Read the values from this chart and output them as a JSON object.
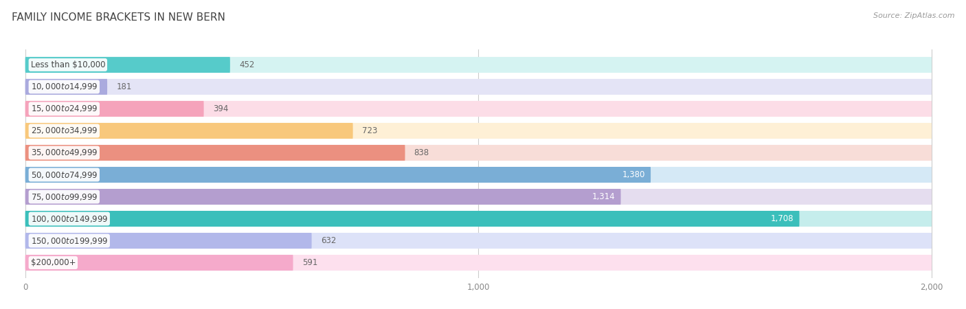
{
  "title": "FAMILY INCOME BRACKETS IN NEW BERN",
  "source": "Source: ZipAtlas.com",
  "categories": [
    "Less than $10,000",
    "$10,000 to $14,999",
    "$15,000 to $24,999",
    "$25,000 to $34,999",
    "$35,000 to $49,999",
    "$50,000 to $74,999",
    "$75,000 to $99,999",
    "$100,000 to $149,999",
    "$150,000 to $199,999",
    "$200,000+"
  ],
  "values": [
    452,
    181,
    394,
    723,
    838,
    1380,
    1314,
    1708,
    632,
    591
  ],
  "bar_colors": [
    "#56CBCA",
    "#AAAADE",
    "#F5A3BB",
    "#F8C87C",
    "#EB9080",
    "#7AAED6",
    "#B49ECF",
    "#3BBFBB",
    "#B2B8EA",
    "#F5AACB"
  ],
  "bar_bg_colors": [
    "#D5F3F2",
    "#E4E4F6",
    "#FCDDE7",
    "#FEF0D6",
    "#F8DDD8",
    "#D5E9F6",
    "#E5DDEF",
    "#C5EDEC",
    "#DDE2F8",
    "#FDE0EE"
  ],
  "value_label_colors": [
    "#777777",
    "#777777",
    "#777777",
    "#777777",
    "#777777",
    "#ffffff",
    "#ffffff",
    "#ffffff",
    "#777777",
    "#777777"
  ],
  "xlim_max": 2000,
  "xticks": [
    0,
    1000,
    2000
  ],
  "background_color": "#ffffff",
  "plot_bg_color": "#f5f5f5",
  "title_fontsize": 11,
  "source_fontsize": 8,
  "label_fontsize": 8.5,
  "value_fontsize": 8.5
}
